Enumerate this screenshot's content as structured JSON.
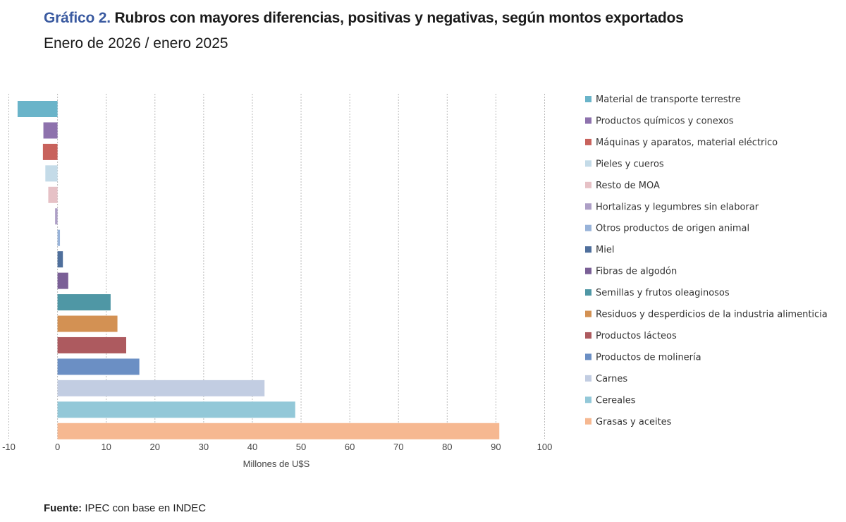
{
  "header": {
    "title_prefix": "Gráfico 2.",
    "title": "Rubros con mayores diferencias, positivas y negativas, según montos exportados",
    "subtitle": "Enero de 2026 / enero 2025"
  },
  "footer": {
    "source_label": "Fuente:",
    "source_text": "IPEC con base en INDEC"
  },
  "chart_data": {
    "type": "bar",
    "orientation": "horizontal",
    "xlabel": "Millones  de U$S",
    "xlim": [
      -10,
      100
    ],
    "ticks": [
      -10,
      0,
      10,
      20,
      30,
      40,
      50,
      60,
      70,
      80,
      90,
      100
    ],
    "grid": true,
    "legend_position": "right",
    "categories": [
      "Material de transporte terrestre",
      "Productos químicos y conexos",
      "Máquinas y aparatos, material eléctrico",
      "Pieles y cueros",
      "Resto de MOA",
      "Hortalizas y legumbres sin elaborar",
      "Otros productos de origen animal",
      "Miel",
      "Fibras de algodón",
      "Semillas y frutos oleaginosos",
      "Residuos y desperdicios de la industria alimenticia",
      "Productos lácteos",
      "Productos de molinería",
      "Carnes",
      "Cereales",
      "Grasas y aceites"
    ],
    "values": [
      -8.2,
      -2.9,
      -3.0,
      -2.5,
      -1.9,
      -0.5,
      0.5,
      1.1,
      2.2,
      10.9,
      12.3,
      14.1,
      16.8,
      42.5,
      48.8,
      90.7
    ],
    "colors": [
      "#6ab4c9",
      "#8e72ad",
      "#c8625c",
      "#c4dbe8",
      "#e6c1c6",
      "#ad9fc6",
      "#98b3d9",
      "#4f6f9c",
      "#7a5f96",
      "#4f97a5",
      "#d39153",
      "#ad5a5f",
      "#6b8fc4",
      "#c2cde2",
      "#93c8d8",
      "#f6b891"
    ]
  }
}
